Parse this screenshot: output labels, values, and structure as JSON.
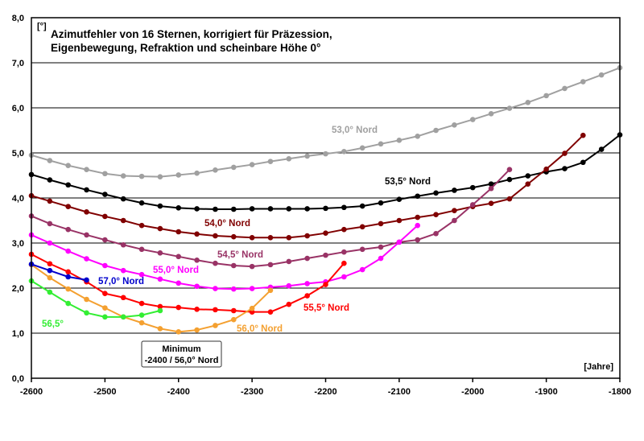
{
  "chart_data": {
    "type": "line",
    "title": [
      "Azimutfehler von 16 Sternen, korrigiert für Präzession,",
      "Eigenbewegung, Refraktion und scheinbare Höhe 0°"
    ],
    "ylabel": "[°]",
    "xlabel": "[Jahre]",
    "xlim": [
      -2600,
      -1800
    ],
    "ylim": [
      0,
      8
    ],
    "x_ticks": [
      "-2600",
      "-2500",
      "-2400",
      "-2300",
      "-2200",
      "-2100",
      "-2000",
      "-1900",
      "-1800"
    ],
    "y_ticks": [
      "0,0",
      "1,0",
      "2,0",
      "3,0",
      "4,0",
      "5,0",
      "6,0",
      "7,0",
      "8,0"
    ],
    "grid": "horizontal",
    "annotation": [
      "Minimum",
      "-2400 / 56,0° Nord"
    ],
    "series": [
      {
        "name": "53,0° Nord",
        "color": "#a0a0a0",
        "x_start": -2600,
        "x_step": 25,
        "values": [
          4.95,
          4.83,
          4.72,
          4.63,
          4.54,
          4.49,
          4.48,
          4.47,
          4.51,
          4.55,
          4.62,
          4.68,
          4.74,
          4.81,
          4.87,
          4.93,
          4.98,
          5.03,
          5.11,
          5.2,
          5.28,
          5.37,
          5.5,
          5.62,
          5.74,
          5.87,
          5.99,
          6.12,
          6.27,
          6.43,
          6.58,
          6.73,
          6.89
        ]
      },
      {
        "name": "53,5° Nord",
        "color": "#000000",
        "x_start": -2600,
        "x_step": 25,
        "values": [
          4.52,
          4.4,
          4.29,
          4.18,
          4.08,
          3.98,
          3.89,
          3.82,
          3.78,
          3.76,
          3.75,
          3.75,
          3.76,
          3.76,
          3.76,
          3.76,
          3.77,
          3.79,
          3.82,
          3.89,
          3.97,
          4.04,
          4.11,
          4.17,
          4.23,
          4.31,
          4.41,
          4.49,
          4.58,
          4.65,
          4.79,
          5.08,
          5.4
        ]
      },
      {
        "name": "54,0° Nord",
        "color": "#800000",
        "x_start": -2600,
        "x_step": 25,
        "values": [
          4.05,
          3.93,
          3.81,
          3.69,
          3.59,
          3.5,
          3.39,
          3.32,
          3.25,
          3.2,
          3.16,
          3.14,
          3.12,
          3.12,
          3.12,
          3.16,
          3.22,
          3.3,
          3.36,
          3.43,
          3.5,
          3.57,
          3.63,
          3.72,
          3.81,
          3.88,
          3.98,
          4.31,
          4.64,
          4.99,
          5.39
        ]
      },
      {
        "name": "54,5° Nord",
        "color": "#993366",
        "x_start": -2600,
        "x_step": 25,
        "values": [
          3.6,
          3.43,
          3.3,
          3.18,
          3.07,
          2.96,
          2.86,
          2.78,
          2.7,
          2.62,
          2.55,
          2.5,
          2.48,
          2.52,
          2.59,
          2.66,
          2.73,
          2.8,
          2.86,
          2.91,
          3.02,
          3.07,
          3.21,
          3.5,
          3.85,
          4.21,
          4.63
        ]
      },
      {
        "name": "55,0° Nord",
        "color": "#ff00ff",
        "x_start": -2600,
        "x_step": 25,
        "values": [
          3.18,
          3.0,
          2.82,
          2.65,
          2.5,
          2.39,
          2.3,
          2.2,
          2.11,
          2.04,
          1.99,
          1.98,
          1.99,
          2.02,
          2.05,
          2.1,
          2.14,
          2.25,
          2.41,
          2.66,
          3.02,
          3.39
        ]
      },
      {
        "name": "55,5° Nord",
        "color": "#ff0000",
        "x_start": -2600,
        "x_step": 25,
        "values": [
          2.75,
          2.54,
          2.36,
          2.14,
          1.88,
          1.79,
          1.66,
          1.59,
          1.57,
          1.53,
          1.52,
          1.5,
          1.47,
          1.47,
          1.64,
          1.83,
          2.08,
          2.55
        ]
      },
      {
        "name": "56,0° Nord",
        "color": "#f4a030",
        "x_start": -2600,
        "x_step": 25,
        "values": [
          2.52,
          2.23,
          1.98,
          1.75,
          1.56,
          1.36,
          1.23,
          1.1,
          1.03,
          1.07,
          1.17,
          1.3,
          1.55,
          1.95
        ]
      },
      {
        "name": "56,5°",
        "color": "#33ee33",
        "x_start": -2600,
        "x_step": 25,
        "values": [
          2.16,
          1.91,
          1.66,
          1.45,
          1.36,
          1.36,
          1.4,
          1.5
        ]
      },
      {
        "name": "57,0° Nord",
        "color": "#0000cc",
        "x_start": -2600,
        "x_step": 25,
        "values": [
          2.53,
          2.39,
          2.25,
          2.18
        ]
      }
    ]
  }
}
